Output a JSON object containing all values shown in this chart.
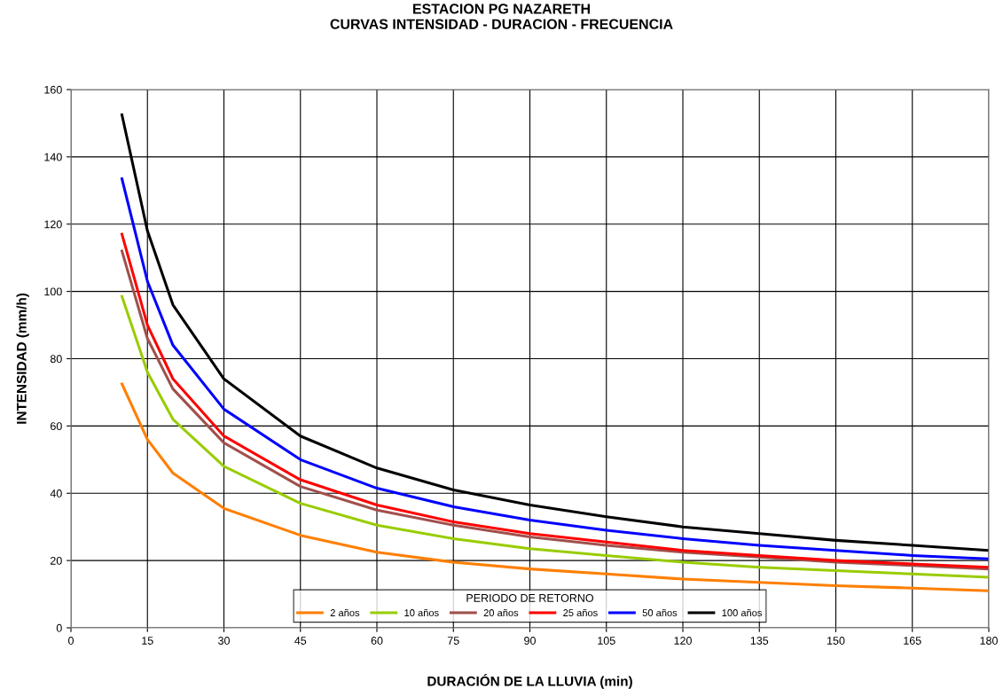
{
  "chart_data": {
    "type": "line",
    "title": "ESTACION PG NAZARETH\nCURVAS INTENSIDAD - DURACION - FRECUENCIA",
    "xlabel": "DURACIÓN DE LA LLUVIA (min)",
    "ylabel": "INTENSIDAD (mm/h)",
    "legend_title": "PERIODO DE RETORNO",
    "x": [
      10,
      15,
      20,
      30,
      45,
      60,
      75,
      90,
      105,
      120,
      135,
      150,
      165,
      180
    ],
    "series": [
      {
        "name": "2 años",
        "color": "#ff7f00",
        "values": [
          72.5,
          56,
          46,
          35.5,
          27.5,
          22.5,
          19.5,
          17.5,
          16,
          14.5,
          13.5,
          12.5,
          11.8,
          11
        ]
      },
      {
        "name": "10 años",
        "color": "#99cc00",
        "values": [
          98.5,
          76,
          62,
          48,
          37,
          30.5,
          26.5,
          23.5,
          21.5,
          19.5,
          18,
          17,
          16,
          15
        ]
      },
      {
        "name": "20 años",
        "color": "#a0504b",
        "values": [
          112,
          86,
          71,
          55,
          42,
          35,
          30.5,
          27,
          24.5,
          22.5,
          21,
          19.5,
          18.5,
          17.5
        ]
      },
      {
        "name": "25 años",
        "color": "#ff0000",
        "values": [
          117,
          90,
          74,
          57,
          44,
          36.5,
          31.5,
          28,
          25.5,
          23,
          21.5,
          20,
          19,
          18
        ]
      },
      {
        "name": "50 años",
        "color": "#0000ff",
        "values": [
          133.5,
          103,
          84,
          65,
          50,
          41.5,
          36,
          32,
          29,
          26.5,
          24.5,
          23,
          21.5,
          20.5
        ]
      },
      {
        "name": "100 años",
        "color": "#000000",
        "values": [
          152.5,
          118,
          96,
          74,
          57,
          47.5,
          41,
          36.5,
          33,
          30,
          28,
          26,
          24.5,
          23
        ]
      }
    ],
    "xlim": [
      0,
      180
    ],
    "xticks": [
      0,
      15,
      30,
      45,
      60,
      75,
      90,
      105,
      120,
      135,
      150,
      165,
      180
    ],
    "ylim": [
      0,
      160
    ],
    "yticks": [
      0,
      20,
      40,
      60,
      80,
      100,
      120,
      140,
      160
    ],
    "grid": true,
    "legend": "bottom",
    "marker": "none",
    "line_style": "solid"
  }
}
